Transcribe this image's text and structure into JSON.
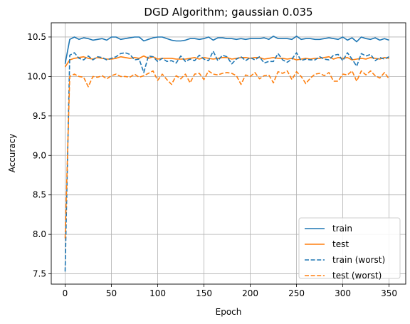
{
  "chart_data": {
    "type": "line",
    "title": "DGD Algorithm; gaussian 0.035",
    "xlabel": "Epoch",
    "ylabel": "Accuracy",
    "xlim": [
      -15,
      368
    ],
    "ylim": [
      7.37,
      10.68
    ],
    "xticks": [
      0,
      50,
      100,
      150,
      200,
      250,
      300,
      350
    ],
    "yticks": [
      7.5,
      8.0,
      8.5,
      9.0,
      9.5,
      10.0,
      10.5
    ],
    "xtick_labels": [
      "0",
      "50",
      "100",
      "150",
      "200",
      "250",
      "300",
      "350"
    ],
    "ytick_labels": [
      "7.5",
      "8.0",
      "8.5",
      "9.0",
      "9.5",
      "10.0",
      "10.5"
    ],
    "grid": true,
    "legend_position": "lower right",
    "series": [
      {
        "name": "train",
        "color": "#1f77b4",
        "style": "solid",
        "x": [
          0,
          5,
          10,
          15,
          20,
          25,
          30,
          35,
          40,
          45,
          50,
          55,
          60,
          65,
          70,
          75,
          80,
          85,
          90,
          95,
          100,
          105,
          110,
          115,
          120,
          125,
          130,
          135,
          140,
          145,
          150,
          155,
          160,
          165,
          170,
          175,
          180,
          185,
          190,
          195,
          200,
          205,
          210,
          215,
          220,
          225,
          230,
          235,
          240,
          245,
          250,
          255,
          260,
          265,
          270,
          275,
          280,
          285,
          290,
          295,
          300,
          305,
          310,
          315,
          320,
          325,
          330,
          335,
          340,
          345,
          350
        ],
        "values": [
          10.16,
          10.47,
          10.5,
          10.47,
          10.49,
          10.48,
          10.46,
          10.47,
          10.48,
          10.46,
          10.5,
          10.5,
          10.47,
          10.48,
          10.49,
          10.5,
          10.5,
          10.45,
          10.47,
          10.49,
          10.5,
          10.5,
          10.48,
          10.46,
          10.45,
          10.45,
          10.46,
          10.48,
          10.48,
          10.47,
          10.48,
          10.5,
          10.46,
          10.49,
          10.49,
          10.48,
          10.48,
          10.47,
          10.48,
          10.47,
          10.48,
          10.48,
          10.48,
          10.49,
          10.47,
          10.51,
          10.48,
          10.48,
          10.48,
          10.47,
          10.51,
          10.47,
          10.48,
          10.48,
          10.47,
          10.47,
          10.48,
          10.49,
          10.48,
          10.47,
          10.5,
          10.46,
          10.49,
          10.44,
          10.5,
          10.48,
          10.47,
          10.49,
          10.46,
          10.48,
          10.46
        ]
      },
      {
        "name": "test",
        "color": "#ff7f0e",
        "style": "solid",
        "x": [
          0,
          5,
          10,
          15,
          20,
          25,
          30,
          35,
          40,
          45,
          50,
          55,
          60,
          65,
          70,
          75,
          80,
          85,
          90,
          95,
          100,
          105,
          110,
          115,
          120,
          125,
          130,
          135,
          140,
          145,
          150,
          155,
          160,
          165,
          170,
          175,
          180,
          185,
          190,
          195,
          200,
          205,
          210,
          215,
          220,
          225,
          230,
          235,
          240,
          245,
          250,
          255,
          260,
          265,
          270,
          275,
          280,
          285,
          290,
          295,
          300,
          305,
          310,
          315,
          320,
          325,
          330,
          335,
          340,
          345,
          350
        ],
        "values": [
          10.12,
          10.21,
          10.23,
          10.24,
          10.25,
          10.23,
          10.22,
          10.24,
          10.23,
          10.22,
          10.22,
          10.23,
          10.25,
          10.24,
          10.23,
          10.24,
          10.23,
          10.26,
          10.23,
          10.25,
          10.22,
          10.23,
          10.23,
          10.23,
          10.22,
          10.22,
          10.22,
          10.23,
          10.24,
          10.22,
          10.24,
          10.23,
          10.22,
          10.23,
          10.24,
          10.24,
          10.22,
          10.23,
          10.24,
          10.24,
          10.23,
          10.24,
          10.24,
          10.22,
          10.23,
          10.24,
          10.23,
          10.23,
          10.22,
          10.23,
          10.21,
          10.22,
          10.23,
          10.22,
          10.23,
          10.23,
          10.24,
          10.25,
          10.22,
          10.24,
          10.23,
          10.24,
          10.21,
          10.22,
          10.23,
          10.22,
          10.24,
          10.23,
          10.22,
          10.24,
          10.23
        ]
      },
      {
        "name": "train (worst)",
        "color": "#1f77b4",
        "style": "dashed",
        "x": [
          0,
          5,
          10,
          15,
          20,
          25,
          30,
          35,
          40,
          45,
          50,
          55,
          60,
          65,
          70,
          75,
          80,
          85,
          90,
          95,
          100,
          105,
          110,
          115,
          120,
          125,
          130,
          135,
          140,
          145,
          150,
          155,
          160,
          165,
          170,
          175,
          180,
          185,
          190,
          195,
          200,
          205,
          210,
          215,
          220,
          225,
          230,
          235,
          240,
          245,
          250,
          255,
          260,
          265,
          270,
          275,
          280,
          285,
          290,
          295,
          300,
          305,
          310,
          315,
          320,
          325,
          330,
          335,
          340,
          345,
          350
        ],
        "values": [
          7.53,
          10.27,
          10.3,
          10.23,
          10.21,
          10.26,
          10.21,
          10.25,
          10.24,
          10.21,
          10.23,
          10.25,
          10.29,
          10.3,
          10.28,
          10.21,
          10.22,
          10.05,
          10.26,
          10.25,
          10.19,
          10.23,
          10.19,
          10.2,
          10.17,
          10.26,
          10.19,
          10.22,
          10.2,
          10.27,
          10.22,
          10.2,
          10.32,
          10.2,
          10.27,
          10.25,
          10.16,
          10.22,
          10.25,
          10.2,
          10.24,
          10.21,
          10.25,
          10.17,
          10.19,
          10.19,
          10.29,
          10.21,
          10.18,
          10.22,
          10.3,
          10.2,
          10.22,
          10.21,
          10.21,
          10.25,
          10.22,
          10.21,
          10.27,
          10.28,
          10.2,
          10.3,
          10.22,
          10.13,
          10.29,
          10.26,
          10.28,
          10.2,
          10.24,
          10.22,
          10.25
        ]
      },
      {
        "name": "test (worst)",
        "color": "#ff7f0e",
        "style": "dashed",
        "x": [
          0,
          5,
          10,
          15,
          20,
          25,
          30,
          35,
          40,
          45,
          50,
          55,
          60,
          65,
          70,
          75,
          80,
          85,
          90,
          95,
          100,
          105,
          110,
          115,
          120,
          125,
          130,
          135,
          140,
          145,
          150,
          155,
          160,
          165,
          170,
          175,
          180,
          185,
          190,
          195,
          200,
          205,
          210,
          215,
          220,
          225,
          230,
          235,
          240,
          245,
          250,
          255,
          260,
          265,
          270,
          275,
          280,
          285,
          290,
          295,
          300,
          305,
          310,
          315,
          320,
          325,
          330,
          335,
          340,
          345,
          350
        ],
        "values": [
          7.95,
          10.0,
          10.03,
          10.0,
          9.99,
          9.87,
          10.0,
          9.99,
          10.01,
          9.97,
          10.01,
          10.03,
          10.0,
          10.0,
          9.99,
          10.03,
          9.99,
          10.01,
          10.04,
          10.07,
          9.95,
          10.03,
          9.96,
          9.9,
          10.01,
          9.97,
          10.03,
          9.92,
          10.03,
          10.04,
          9.96,
          10.07,
          10.03,
          10.02,
          10.04,
          10.05,
          10.04,
          10.01,
          9.9,
          10.02,
          10.0,
          10.05,
          9.97,
          10.01,
          10.02,
          9.92,
          10.06,
          10.04,
          10.07,
          9.96,
          10.06,
          10.0,
          9.91,
          9.98,
          10.03,
          10.04,
          10.01,
          10.05,
          9.94,
          9.94,
          10.03,
          10.02,
          10.07,
          9.94,
          10.07,
          10.02,
          10.07,
          10.01,
          9.98,
          10.05,
          9.97
        ]
      }
    ]
  }
}
